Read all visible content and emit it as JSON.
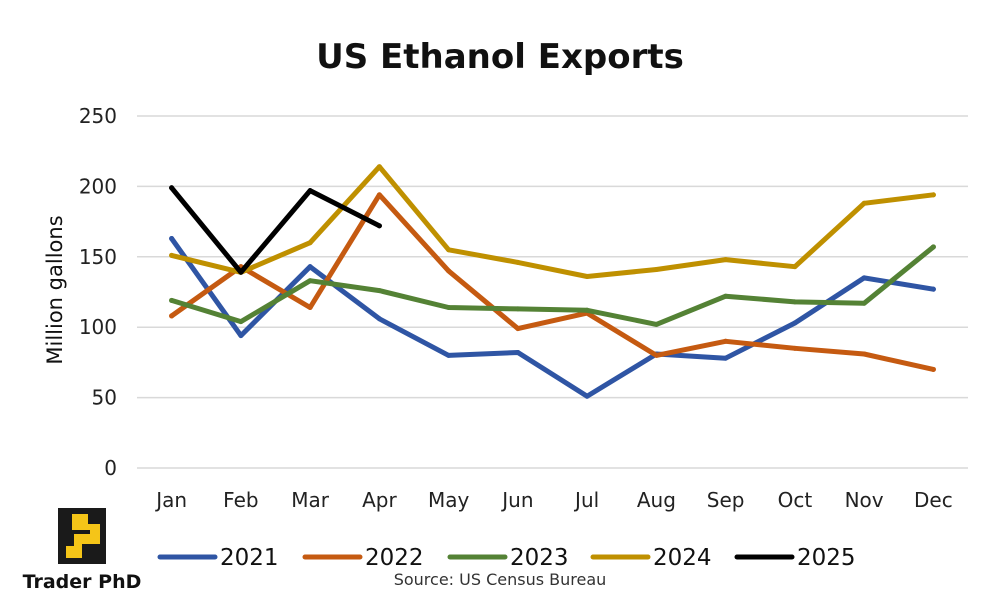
{
  "chart_data": {
    "type": "line",
    "title": "US Ethanol Exports",
    "ylabel": "Million gallons",
    "xlabel": "",
    "ylim": [
      0,
      250
    ],
    "yticks": [
      0,
      50,
      100,
      150,
      200,
      250
    ],
    "grid": true,
    "legend_position": "bottom",
    "categories": [
      "Jan",
      "Feb",
      "Mar",
      "Apr",
      "May",
      "Jun",
      "Jul",
      "Aug",
      "Sep",
      "Oct",
      "Nov",
      "Dec"
    ],
    "series": [
      {
        "name": "2021",
        "color": "#2f55a4",
        "values": [
          163,
          94,
          143,
          106,
          80,
          82,
          51,
          81,
          78,
          103,
          135,
          127
        ]
      },
      {
        "name": "2022",
        "color": "#c55a11",
        "values": [
          108,
          143,
          114,
          194,
          140,
          99,
          110,
          80,
          90,
          85,
          81,
          70
        ]
      },
      {
        "name": "2023",
        "color": "#548235",
        "values": [
          119,
          104,
          133,
          126,
          114,
          113,
          112,
          102,
          122,
          118,
          117,
          157
        ]
      },
      {
        "name": "2024",
        "color": "#bf9000",
        "values": [
          151,
          139,
          160,
          214,
          155,
          146,
          136,
          141,
          148,
          143,
          188,
          194
        ]
      },
      {
        "name": "2025",
        "color": "#000000",
        "values": [
          199,
          139,
          197,
          172,
          null,
          null,
          null,
          null,
          null,
          null,
          null,
          null
        ]
      }
    ]
  },
  "source": "Source: US Census Bureau",
  "brand": {
    "name": "Trader PhD",
    "logo_color": "#f5c518"
  }
}
